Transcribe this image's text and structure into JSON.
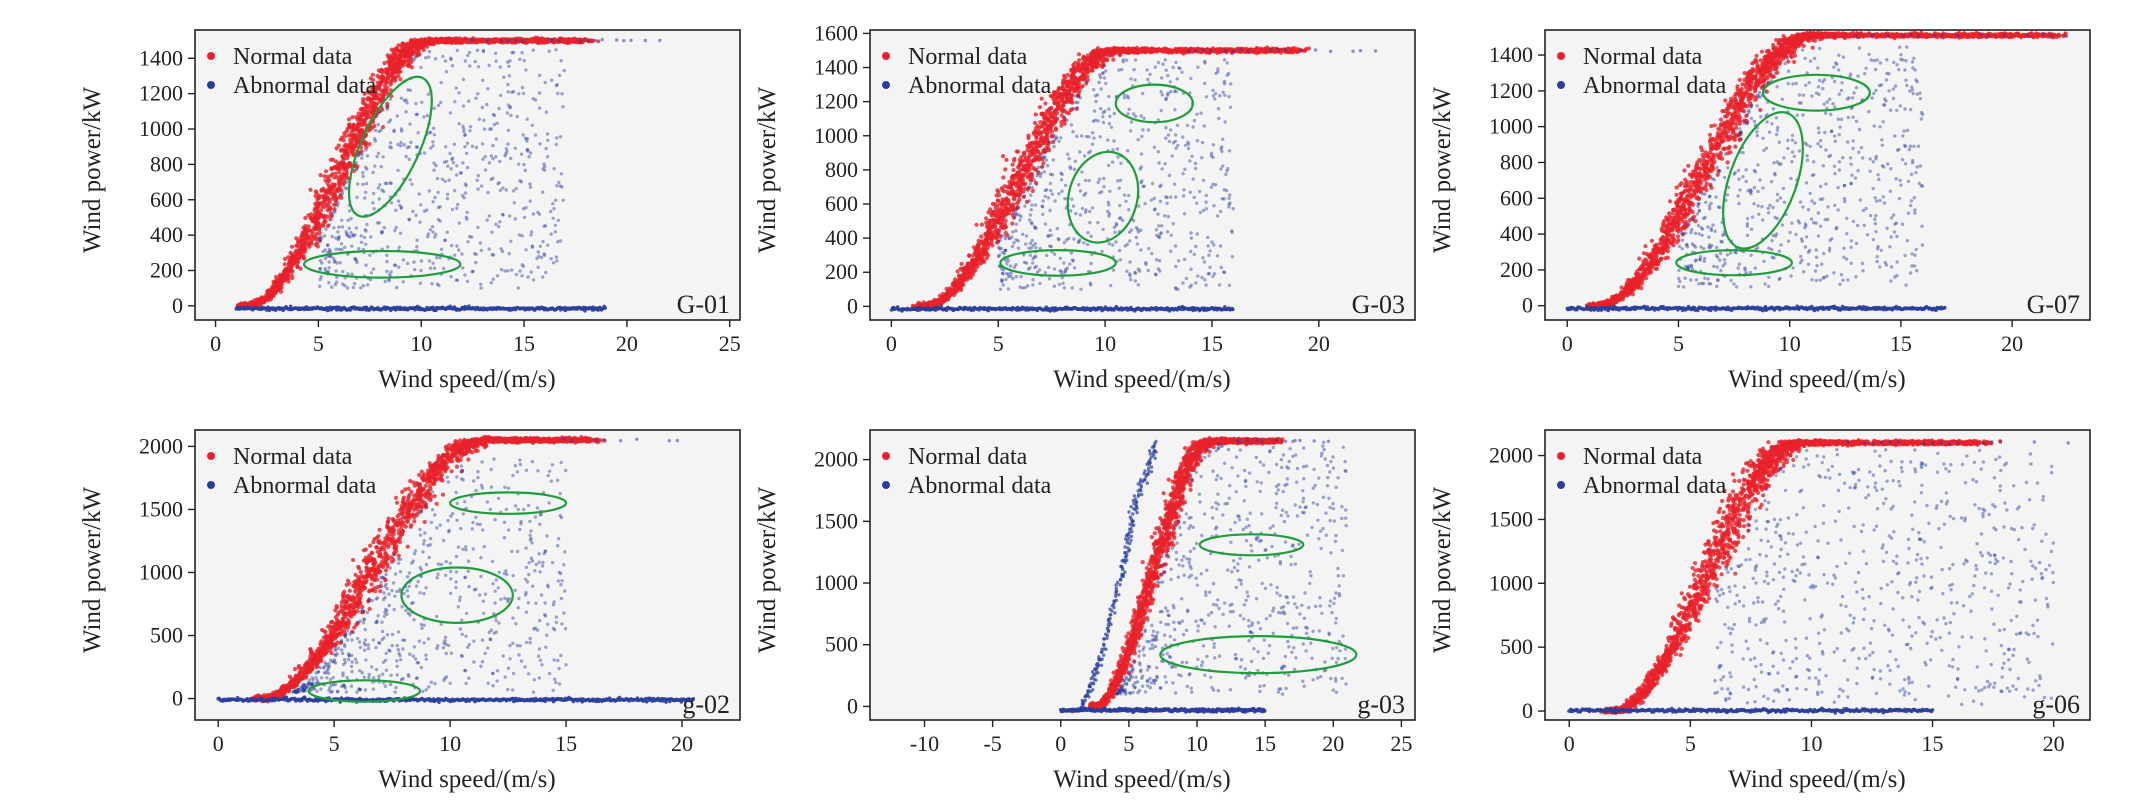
{
  "legend": {
    "normal": "Normal data",
    "abnormal": "Abnormal data"
  },
  "colors": {
    "normal": "#e8222a",
    "abnormal": "#2a3e9c",
    "highlight": "#1e9e3a",
    "frame": "#222222",
    "band": "#f4f4f4"
  },
  "chart_data": [
    {
      "type": "scatter",
      "id": "G-01",
      "xlabel": "Wind speed/(m/s)",
      "ylabel": "Wind power/kW",
      "xlim": [
        -1,
        25.5
      ],
      "ylim": [
        -80,
        1560
      ],
      "xticks": [
        0,
        5,
        10,
        15,
        20,
        25
      ],
      "yticks": [
        0,
        200,
        400,
        600,
        800,
        1000,
        1200,
        1400
      ],
      "rated_power": 1500,
      "cut_in": 1.5,
      "rated_speed": 10.5,
      "curve_max_speed": 18,
      "normal_band": [
        [
          1.2,
          1.9,
          -5,
          5
        ],
        [
          3,
          4.5,
          40,
          120
        ],
        [
          5,
          6.2,
          200,
          400
        ],
        [
          7,
          8,
          580,
          850
        ],
        [
          9,
          10,
          1000,
          1250
        ],
        [
          10.5,
          11.5,
          1350,
          1500
        ],
        [
          11.5,
          18,
          1495,
          1510
        ]
      ],
      "abnormal_scatter": {
        "x": [
          5,
          17
        ],
        "y": [
          100,
          1450
        ]
      },
      "abnormal_zero_line": {
        "x": [
          1,
          19
        ],
        "y": -15
      },
      "highlights": [
        {
          "cx": 8.5,
          "cy": 900,
          "rx": 1.4,
          "ry": 430,
          "angle_deg": 25
        },
        {
          "cx": 8.1,
          "cy": 235,
          "rx": 3.8,
          "ry": 75,
          "angle_deg": 0
        }
      ]
    },
    {
      "type": "scatter",
      "id": "G-03",
      "xlabel": "Wind speed/(m/s)",
      "ylabel": "Wind power/kW",
      "xlim": [
        -1,
        24.5
      ],
      "ylim": [
        -80,
        1620
      ],
      "xticks": [
        0,
        5,
        10,
        15,
        20
      ],
      "yticks": [
        0,
        200,
        400,
        600,
        800,
        1000,
        1200,
        1400,
        1600
      ],
      "rated_power": 1500,
      "cut_in": 1.5,
      "rated_speed": 10.5,
      "curve_max_speed": 19,
      "normal_band": [
        [
          1.2,
          1.9,
          -5,
          5
        ],
        [
          3,
          4.5,
          40,
          120
        ],
        [
          5,
          6.2,
          200,
          400
        ],
        [
          7,
          8,
          580,
          850
        ],
        [
          9,
          10,
          1000,
          1250
        ],
        [
          10.5,
          11.5,
          1350,
          1500
        ],
        [
          11.5,
          19,
          1495,
          1510
        ]
      ],
      "abnormal_scatter": {
        "x": [
          5,
          16
        ],
        "y": [
          100,
          1450
        ]
      },
      "abnormal_zero_line": {
        "x": [
          0,
          16
        ],
        "y": -15
      },
      "highlights": [
        {
          "cx": 12.3,
          "cy": 1190,
          "rx": 1.8,
          "ry": 110,
          "angle_deg": 0
        },
        {
          "cx": 9.9,
          "cy": 640,
          "rx": 1.6,
          "ry": 270,
          "angle_deg": 15
        },
        {
          "cx": 7.8,
          "cy": 255,
          "rx": 2.7,
          "ry": 75,
          "angle_deg": 0
        }
      ]
    },
    {
      "type": "scatter",
      "id": "G-07",
      "xlabel": "Wind speed/(m/s)",
      "ylabel": "Wind power/kW",
      "xlim": [
        -1,
        23.5
      ],
      "ylim": [
        -80,
        1540
      ],
      "xticks": [
        0,
        5,
        10,
        15,
        20
      ],
      "yticks": [
        0,
        200,
        400,
        600,
        800,
        1000,
        1200,
        1400
      ],
      "rated_power": 1510,
      "cut_in": 1.3,
      "rated_speed": 11,
      "curve_max_speed": 22,
      "normal_band": [
        [
          1.2,
          1.9,
          -5,
          5
        ],
        [
          3,
          4.5,
          40,
          120
        ],
        [
          5,
          6.2,
          200,
          400
        ],
        [
          7,
          8,
          580,
          850
        ],
        [
          9,
          10,
          1000,
          1250
        ],
        [
          10.5,
          11.5,
          1350,
          1500
        ],
        [
          11.5,
          22,
          1505,
          1515
        ]
      ],
      "abnormal_scatter": {
        "x": [
          5,
          16
        ],
        "y": [
          100,
          1450
        ]
      },
      "abnormal_zero_line": {
        "x": [
          0,
          17
        ],
        "y": -15
      },
      "highlights": [
        {
          "cx": 11.2,
          "cy": 1190,
          "rx": 2.4,
          "ry": 100,
          "angle_deg": 0
        },
        {
          "cx": 8.8,
          "cy": 700,
          "rx": 1.5,
          "ry": 400,
          "angle_deg": 20
        },
        {
          "cx": 7.5,
          "cy": 240,
          "rx": 2.6,
          "ry": 70,
          "angle_deg": 0
        }
      ]
    },
    {
      "type": "scatter",
      "id": "g-02",
      "xlabel": "Wind speed/(m/s)",
      "ylabel": "Wind power/kW",
      "xlim": [
        -1,
        22.5
      ],
      "ylim": [
        -170,
        2130
      ],
      "xticks": [
        0,
        5,
        10,
        15,
        20
      ],
      "yticks": [
        0,
        500,
        1000,
        1500,
        2000
      ],
      "rated_power": 2050,
      "cut_in": 1.8,
      "rated_speed": 11.5,
      "curve_max_speed": 16,
      "normal_band": [
        [
          1.5,
          2.5,
          -5,
          5
        ],
        [
          4,
          5,
          100,
          250
        ],
        [
          6,
          7,
          500,
          800
        ],
        [
          8,
          9,
          1050,
          1400
        ],
        [
          10,
          11,
          1650,
          1950
        ],
        [
          11.5,
          12.5,
          2000,
          2060
        ],
        [
          12.5,
          16,
          2040,
          2065
        ]
      ],
      "abnormal_scatter": {
        "x": [
          3,
          15
        ],
        "y": [
          50,
          1900
        ]
      },
      "abnormal_zero_line": {
        "x": [
          0,
          20.5
        ],
        "y": -10
      },
      "highlights": [
        {
          "cx": 12.5,
          "cy": 1550,
          "rx": 2.5,
          "ry": 85,
          "angle_deg": 0
        },
        {
          "cx": 10.3,
          "cy": 820,
          "rx": 2.4,
          "ry": 220,
          "angle_deg": 0
        },
        {
          "cx": 6.3,
          "cy": 60,
          "rx": 2.4,
          "ry": 85,
          "angle_deg": 0
        }
      ]
    },
    {
      "type": "scatter",
      "id": "g-03",
      "xlabel": "Wind speed/(m/s)",
      "ylabel": "Wind power/kW",
      "xlim": [
        -14,
        26
      ],
      "ylim": [
        -110,
        2240
      ],
      "xticks": [
        -10,
        -5,
        0,
        5,
        10,
        15,
        20,
        25
      ],
      "yticks": [
        0,
        500,
        1000,
        1500,
        2000
      ],
      "rated_power": 2150,
      "cut_in": 2.5,
      "rated_speed": 11,
      "curve_max_speed": 16,
      "normal_band": [
        [
          2.5,
          4,
          -5,
          10
        ],
        [
          5,
          6.5,
          150,
          450
        ],
        [
          7,
          8.5,
          700,
          1100
        ],
        [
          9,
          10,
          1400,
          1800
        ],
        [
          10.5,
          11.5,
          2000,
          2140
        ],
        [
          12,
          16,
          2145,
          2160
        ]
      ],
      "abnormal_scatter": {
        "x": [
          3,
          21
        ],
        "y": [
          100,
          2150
        ]
      },
      "abnormal_zero_line": {
        "x": [
          0,
          15
        ],
        "y": -30
      },
      "abnormal_line_curve": [
        [
          1.5,
          -30
        ],
        [
          3,
          400
        ],
        [
          4.5,
          1100
        ],
        [
          5.5,
          1650
        ],
        [
          7,
          2150
        ]
      ],
      "highlights": [
        {
          "cx": 14,
          "cy": 1310,
          "rx": 3.8,
          "ry": 85,
          "angle_deg": 0
        },
        {
          "cx": 14.5,
          "cy": 420,
          "rx": 7.2,
          "ry": 150,
          "angle_deg": 0
        }
      ]
    },
    {
      "type": "scatter",
      "id": "g-06",
      "xlabel": "Wind speed/(m/s)",
      "ylabel": "Wind power/kW",
      "xlim": [
        -1,
        21.5
      ],
      "ylim": [
        -70,
        2200
      ],
      "xticks": [
        0,
        5,
        10,
        15,
        20
      ],
      "yticks": [
        0,
        500,
        1000,
        1500,
        2000
      ],
      "rated_power": 2100,
      "cut_in": 1.8,
      "rated_speed": 9.5,
      "curve_max_speed": 17,
      "normal_band": [
        [
          1.5,
          2.5,
          -5,
          5
        ],
        [
          3.5,
          4.5,
          150,
          450
        ],
        [
          5.5,
          6.5,
          600,
          1000
        ],
        [
          7.5,
          8.5,
          1300,
          1800
        ],
        [
          9,
          10,
          1950,
          2090
        ],
        [
          10,
          17,
          2090,
          2110
        ]
      ],
      "abnormal_scatter": {
        "x": [
          6,
          20
        ],
        "y": [
          50,
          2050
        ]
      },
      "abnormal_zero_line": {
        "x": [
          0,
          15
        ],
        "y": 5
      },
      "highlights": []
    }
  ]
}
